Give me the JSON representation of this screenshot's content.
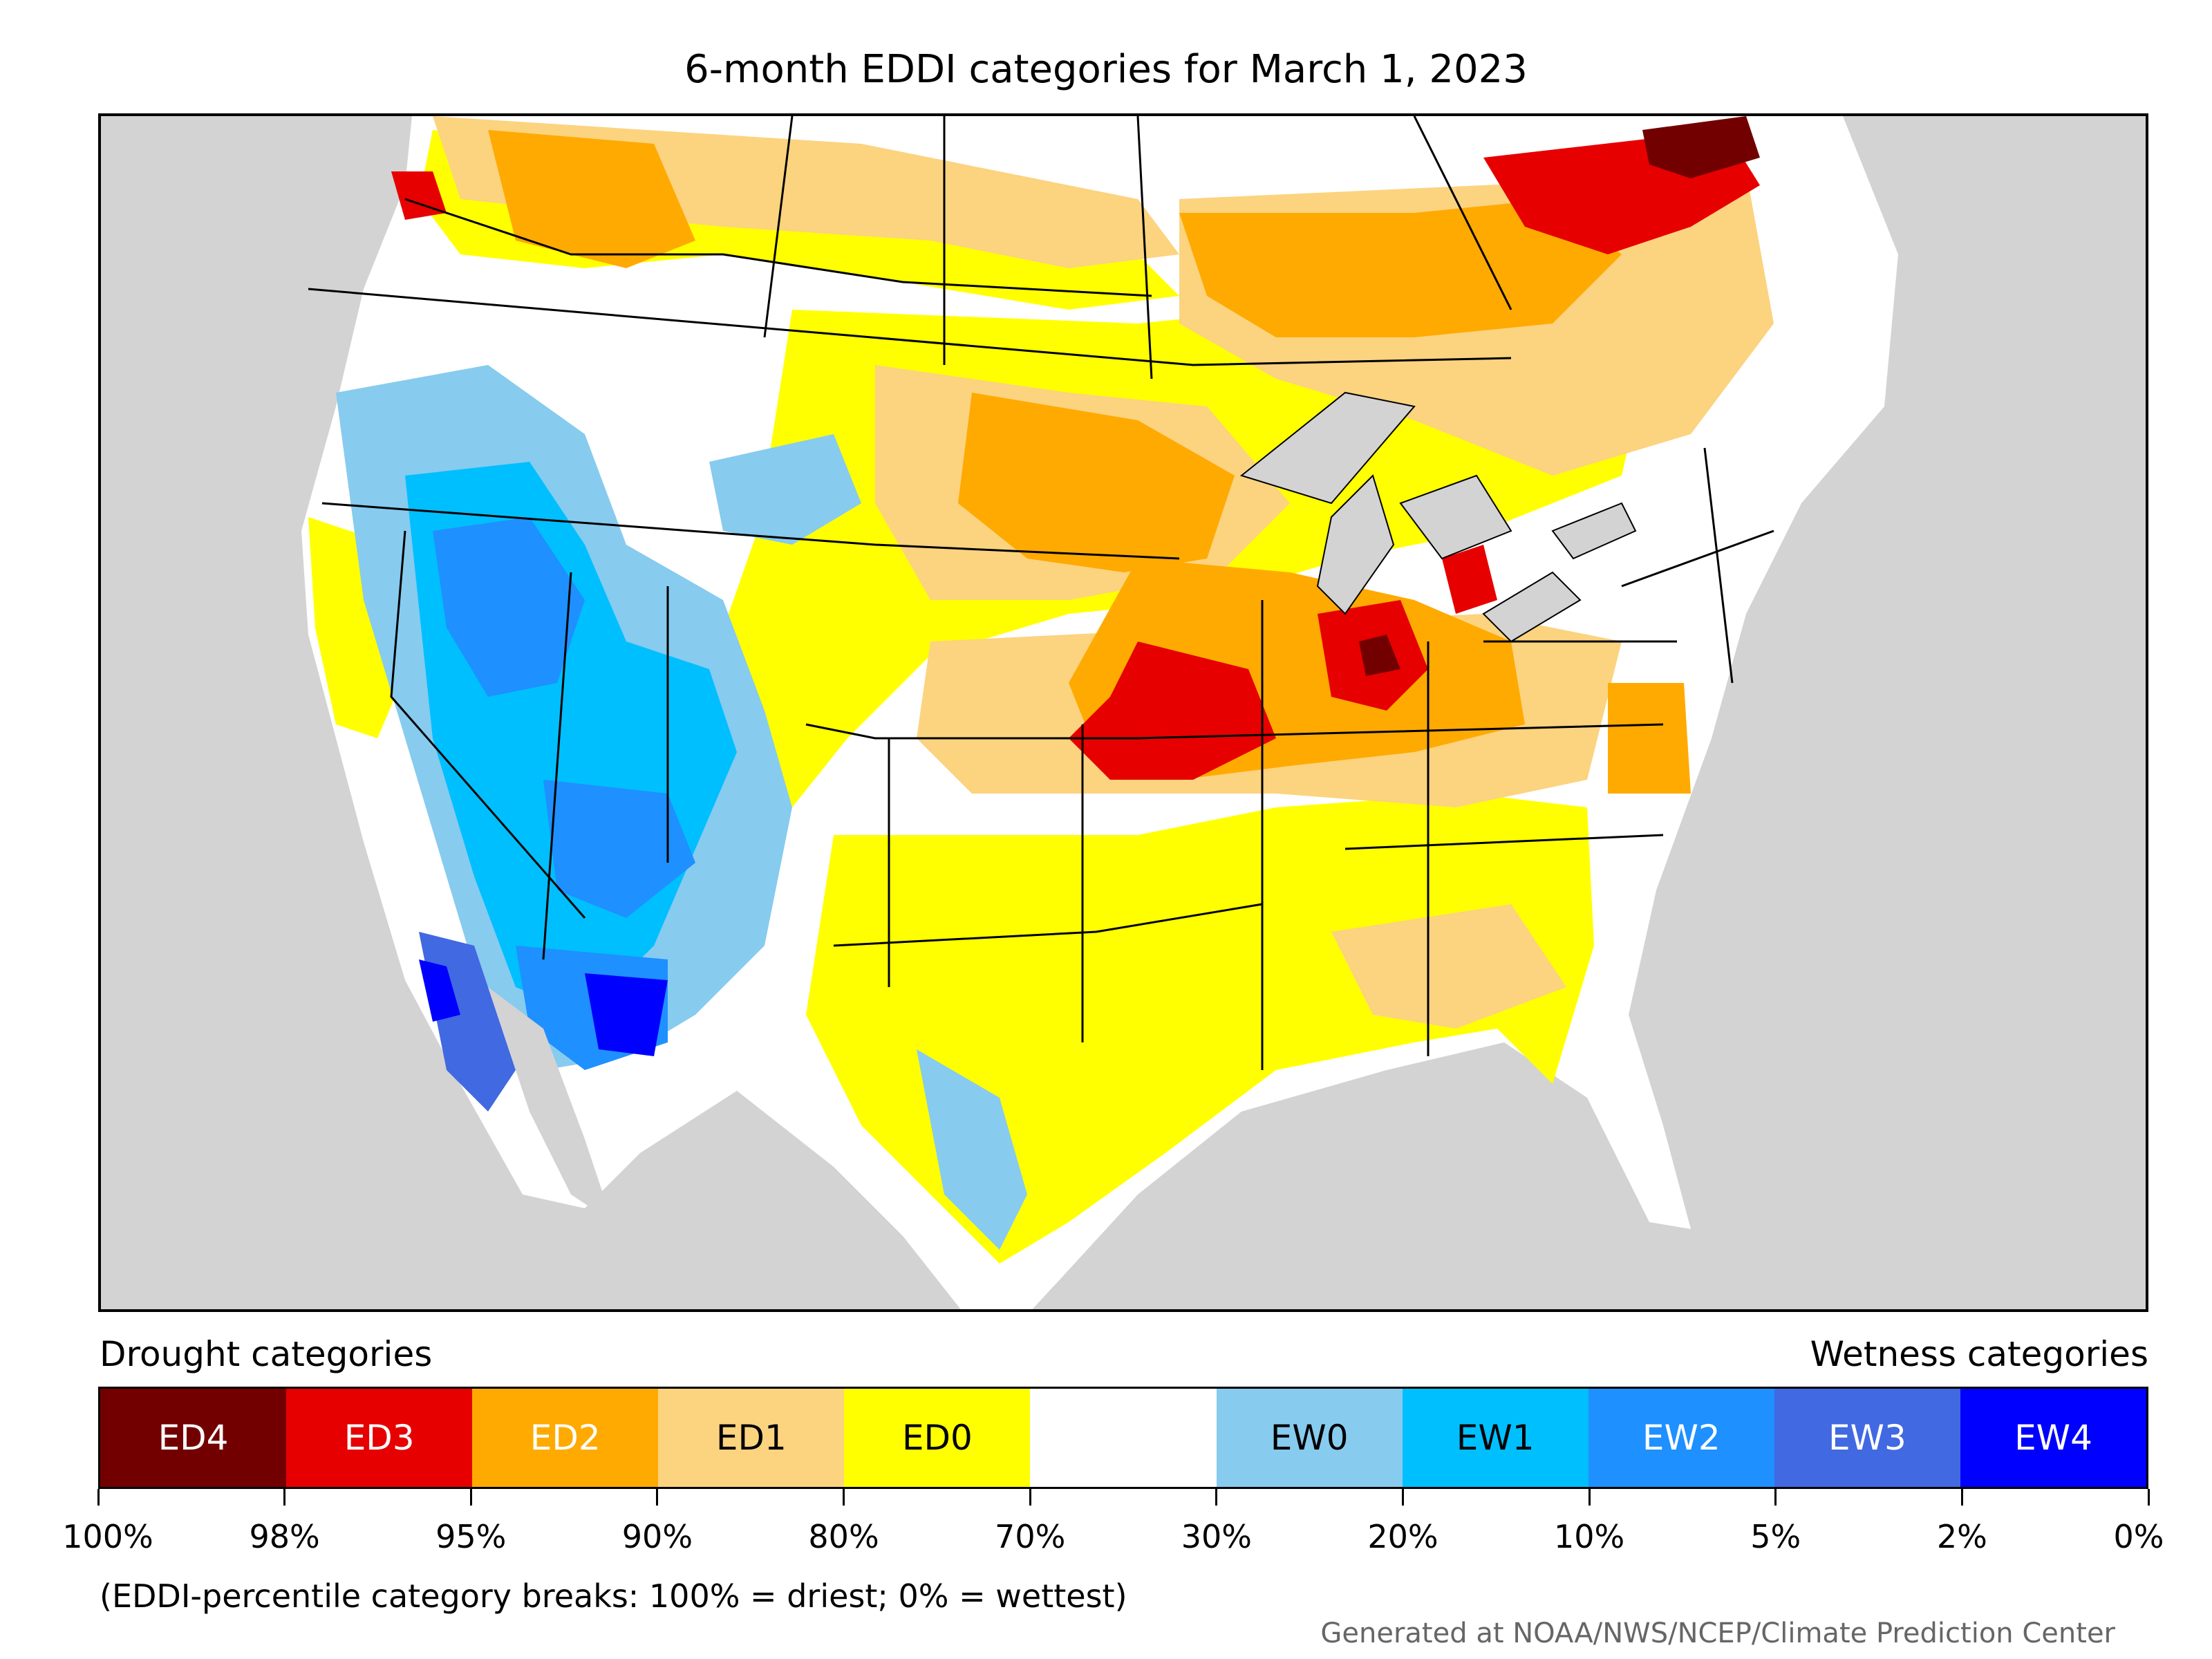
{
  "title": "6-month EDDI categories for March 1, 2023",
  "legend": {
    "drought_label": "Drought categories",
    "wetness_label": "Wetness categories",
    "categories": [
      {
        "label": "ED4",
        "color": "#730000",
        "text_color": "#ffffff"
      },
      {
        "label": "ED3",
        "color": "#e60000",
        "text_color": "#ffffff"
      },
      {
        "label": "ED2",
        "color": "#ffaa00",
        "text_color": "#ffffff"
      },
      {
        "label": "ED1",
        "color": "#fcd37f",
        "text_color": "#000000"
      },
      {
        "label": "ED0",
        "color": "#ffff00",
        "text_color": "#000000"
      },
      {
        "label": "",
        "color": "#ffffff",
        "text_color": "#000000"
      },
      {
        "label": "EW0",
        "color": "#87cbef",
        "text_color": "#000000"
      },
      {
        "label": "EW1",
        "color": "#00bfff",
        "text_color": "#000000"
      },
      {
        "label": "EW2",
        "color": "#1e90ff",
        "text_color": "#ffffff"
      },
      {
        "label": "EW3",
        "color": "#4169e1",
        "text_color": "#ffffff"
      },
      {
        "label": "EW4",
        "color": "#0000ff",
        "text_color": "#ffffff"
      }
    ],
    "ticks": [
      "100%",
      "98%",
      "95%",
      "90%",
      "80%",
      "70%",
      "30%",
      "20%",
      "10%",
      "5%",
      "2%",
      "0%"
    ],
    "note": "(EDDI-percentile category breaks: 100% = driest; 0% = wettest)"
  },
  "credit": "Generated at NOAA/NWS/NCEP/Climate Prediction Center",
  "colors": {
    "ocean_background": "#d3d3d3",
    "land_no_category": "#ffffff"
  }
}
